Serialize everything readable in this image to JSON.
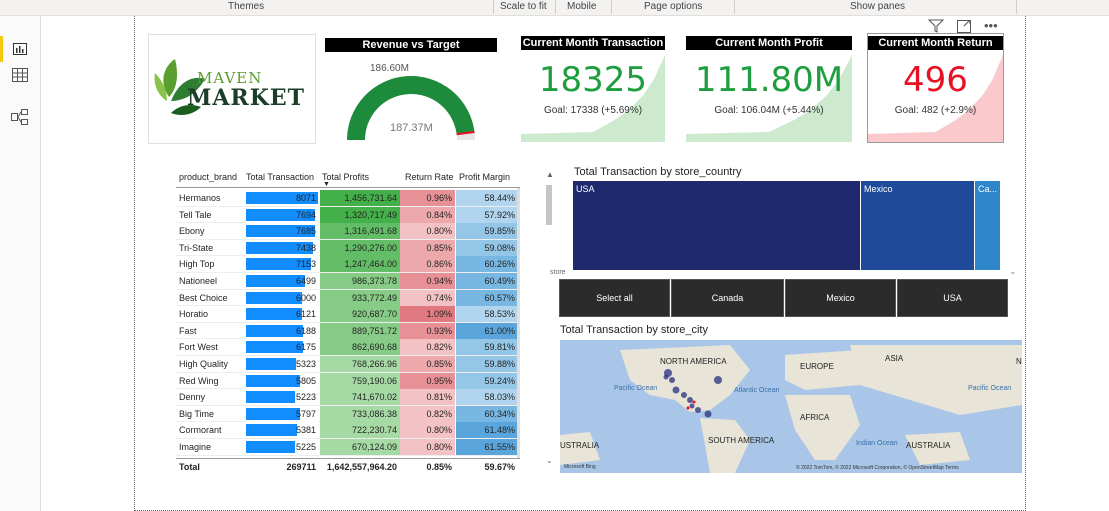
{
  "topbar": {
    "themes": "Themes",
    "scale_to_fit": "Scale to fit",
    "mobile": "Mobile",
    "page_options": "Page options",
    "show_panes": "Show panes"
  },
  "logo": {
    "line1": "MAVEN",
    "line2": "MARKET"
  },
  "gauge": {
    "title": "Revenue vs Target",
    "value_label": "186.60M",
    "target_label": "187.37M",
    "fill_fraction": 0.96,
    "colors": {
      "fill": "#1e8a3c",
      "track": "#e6e6e6",
      "target": "#e81123"
    }
  },
  "kpis": [
    {
      "title": "Current Month Transaction",
      "value": "18325",
      "goal": "Goal: 17338 (+5.69%)",
      "color": "#1e9e3e",
      "area": "#cdeacf"
    },
    {
      "title": "Current Month Profit",
      "value": "111.80M",
      "goal": "Goal: 106.04M (+5.44%)",
      "color": "#1e9e3e",
      "area": "#cdeacf"
    },
    {
      "title": "Current Month Return",
      "value": "496",
      "goal": "Goal: 482 (+2.9%)",
      "color": "#e81123",
      "area": "#f9c9cc"
    }
  ],
  "table": {
    "headers": {
      "brand": "product_brand",
      "tt": "Total Transaction",
      "tp": "Total Profits",
      "rr": "Return Rate",
      "pm": "Profit Margin"
    },
    "rows": [
      {
        "brand": "Hermanos",
        "tt": 8071,
        "tp": "1,456,731.64",
        "rr": "0.96%",
        "pm": "58.44%"
      },
      {
        "brand": "Tell Tale",
        "tt": 7694,
        "tp": "1,320,717.49",
        "rr": "0.84%",
        "pm": "57.92%"
      },
      {
        "brand": "Ebony",
        "tt": 7685,
        "tp": "1,316,491.68",
        "rr": "0.80%",
        "pm": "59.85%"
      },
      {
        "brand": "Tri-State",
        "tt": 7438,
        "tp": "1,290,276.00",
        "rr": "0.85%",
        "pm": "59.08%"
      },
      {
        "brand": "High Top",
        "tt": 7153,
        "tp": "1,247,464.00",
        "rr": "0.86%",
        "pm": "60.26%"
      },
      {
        "brand": "Nationeel",
        "tt": 6499,
        "tp": "986,373.78",
        "rr": "0.94%",
        "pm": "60.49%"
      },
      {
        "brand": "Best Choice",
        "tt": 6000,
        "tp": "933,772.49",
        "rr": "0.74%",
        "pm": "60.57%"
      },
      {
        "brand": "Horatio",
        "tt": 6121,
        "tp": "920,687.70",
        "rr": "1.09%",
        "pm": "58.53%"
      },
      {
        "brand": "Fast",
        "tt": 6188,
        "tp": "889,751.72",
        "rr": "0.93%",
        "pm": "61.00%"
      },
      {
        "brand": "Fort West",
        "tt": 6175,
        "tp": "862,690.68",
        "rr": "0.82%",
        "pm": "59.81%"
      },
      {
        "brand": "High Quality",
        "tt": 5323,
        "tp": "768,266.96",
        "rr": "0.85%",
        "pm": "59.88%"
      },
      {
        "brand": "Red Wing",
        "tt": 5805,
        "tp": "759,190.06",
        "rr": "0.95%",
        "pm": "59.24%"
      },
      {
        "brand": "Denny",
        "tt": 5223,
        "tp": "741,670.02",
        "rr": "0.81%",
        "pm": "58.03%"
      },
      {
        "brand": "Big Time",
        "tt": 5797,
        "tp": "733,086.38",
        "rr": "0.82%",
        "pm": "60.34%"
      },
      {
        "brand": "Cormorant",
        "tt": 5381,
        "tp": "722,230.74",
        "rr": "0.80%",
        "pm": "61.48%"
      },
      {
        "brand": "Imagine",
        "tt": 5225,
        "tp": "670,124.09",
        "rr": "0.80%",
        "pm": "61.55%"
      }
    ],
    "total": {
      "label": "Total",
      "tt": "269711",
      "tp": "1,642,557,964.20",
      "rr": "0.85%",
      "pm": "59.67%"
    }
  },
  "treemap": {
    "title": "Total Transaction by store_country",
    "store_label": "store",
    "blocks": [
      {
        "label": "USA",
        "share": 0.66,
        "color": "#1f2a6e"
      },
      {
        "label": "Mexico",
        "share": 0.26,
        "color": "#1e4a99"
      },
      {
        "label": "Ca...",
        "share": 0.06,
        "color": "#2e86c8"
      }
    ]
  },
  "slicer": {
    "options": [
      "Select all",
      "Canada",
      "Mexico",
      "USA"
    ]
  },
  "map": {
    "title": "Total Transaction by store_city",
    "labels": {
      "north_america": "NORTH AMERICA",
      "europe": "EUROPE",
      "asia": "ASIA",
      "africa": "AFRICA",
      "south_america": "SOUTH AMERICA",
      "australia_left": "USTRALIA",
      "australia_right": "AUSTRALIA",
      "pacific_left": "Pacific Ocean",
      "atlantic": "Atlantic Ocean",
      "indian": "Indian Ocean",
      "pacific_right": "Pacific Ocean",
      "bing": "Microsoft Bing",
      "copyright": "© 2022 TomTom, © 2022 Microsoft Corporation, © OpenStreetMap  Terms",
      "partial_n": "N"
    }
  }
}
